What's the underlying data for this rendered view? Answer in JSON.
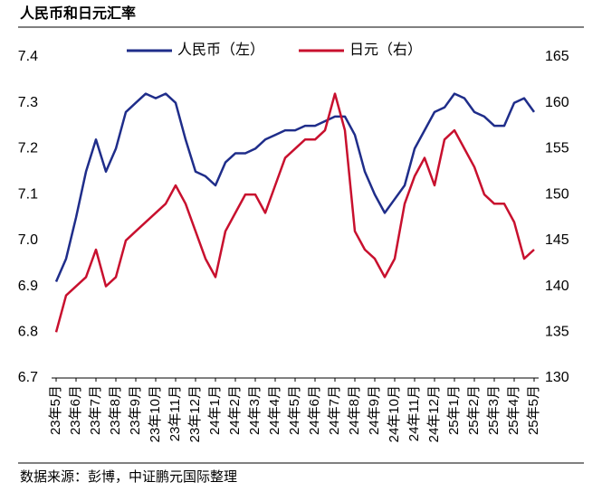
{
  "chart_data": {
    "type": "line",
    "title": "人民币和日元汇率",
    "source": "数据来源：彭博，中证鹏元国际整理",
    "categories": [
      "23年5月",
      null,
      "23年6月",
      null,
      "23年7月",
      null,
      "23年8月",
      null,
      "23年9月",
      null,
      "23年10月",
      null,
      "23年11月",
      null,
      "23年12月",
      null,
      "24年1月",
      null,
      "24年2月",
      null,
      "24年3月",
      null,
      "24年4月",
      null,
      "24年5月",
      null,
      "24年6月",
      null,
      "24年7月",
      null,
      "24年8月",
      null,
      "24年9月",
      null,
      "24年10月",
      null,
      "24年11月",
      null,
      "24年12月",
      null,
      "25年1月",
      null,
      "25年2月",
      null,
      "25年3月",
      null,
      "25年4月",
      null,
      "25年5月"
    ],
    "series": [
      {
        "name": "人民币（左）",
        "color": "#1f2d8a",
        "axis": "y",
        "values": [
          6.91,
          6.96,
          7.05,
          7.15,
          7.22,
          7.15,
          7.2,
          7.28,
          7.3,
          7.32,
          7.31,
          7.32,
          7.3,
          7.22,
          7.15,
          7.14,
          7.12,
          7.17,
          7.19,
          7.19,
          7.2,
          7.22,
          7.23,
          7.24,
          7.24,
          7.25,
          7.25,
          7.26,
          7.27,
          7.27,
          7.23,
          7.15,
          7.1,
          7.06,
          7.09,
          7.12,
          7.2,
          7.24,
          7.28,
          7.29,
          7.32,
          7.31,
          7.28,
          7.27,
          7.25,
          7.25,
          7.3,
          7.31,
          7.28
        ]
      },
      {
        "name": "日元（右）",
        "color": "#c8102e",
        "axis": "y2",
        "values": [
          135,
          139,
          140,
          141,
          144,
          140,
          141,
          145,
          146,
          147,
          148,
          149,
          151,
          149,
          146,
          143,
          141,
          146,
          148,
          150,
          150,
          148,
          151,
          154,
          155,
          156,
          156,
          157,
          161,
          157,
          146,
          144,
          143,
          141,
          143,
          149,
          152,
          154,
          151,
          156,
          157,
          155,
          153,
          150,
          149,
          149,
          147,
          143,
          144
        ]
      }
    ],
    "ylim": [
      6.7,
      7.4
    ],
    "yticks": [
      6.7,
      6.8,
      6.9,
      {
        "value": 7,
        "label": "7.0"
      },
      7.1,
      7.2,
      7.3,
      7.4
    ],
    "y2lim": [
      130,
      165
    ],
    "y2ticks": [
      130,
      135,
      140,
      145,
      150,
      155,
      160,
      165
    ],
    "legend": "top"
  }
}
